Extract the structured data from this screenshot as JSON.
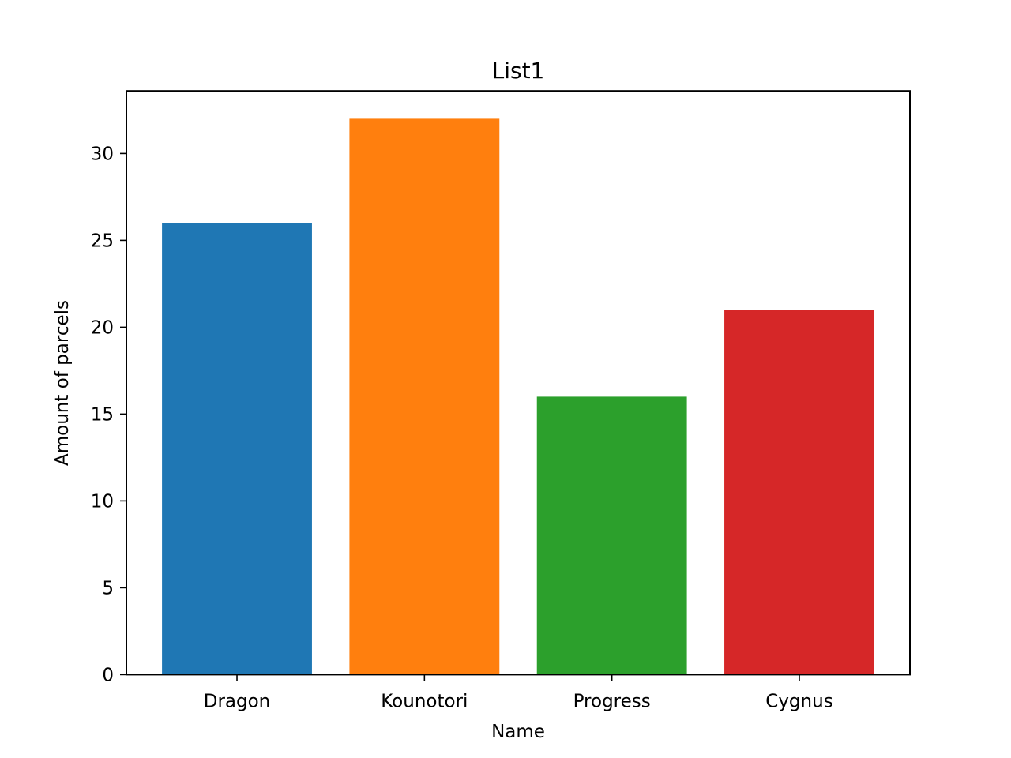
{
  "chart_data": {
    "type": "bar",
    "title": "List1",
    "xlabel": "Name",
    "ylabel": "Amount of parcels",
    "categories": [
      "Dragon",
      "Kounotori",
      "Progress",
      "Cygnus"
    ],
    "values": [
      26,
      32,
      16,
      21
    ],
    "colors": [
      "#1f77b4",
      "#ff7f0e",
      "#2ca02c",
      "#d62728"
    ],
    "ylim": [
      0,
      33.6
    ],
    "yticks": [
      0,
      5,
      10,
      15,
      20,
      25,
      30
    ],
    "grid": false,
    "legend": "none"
  }
}
